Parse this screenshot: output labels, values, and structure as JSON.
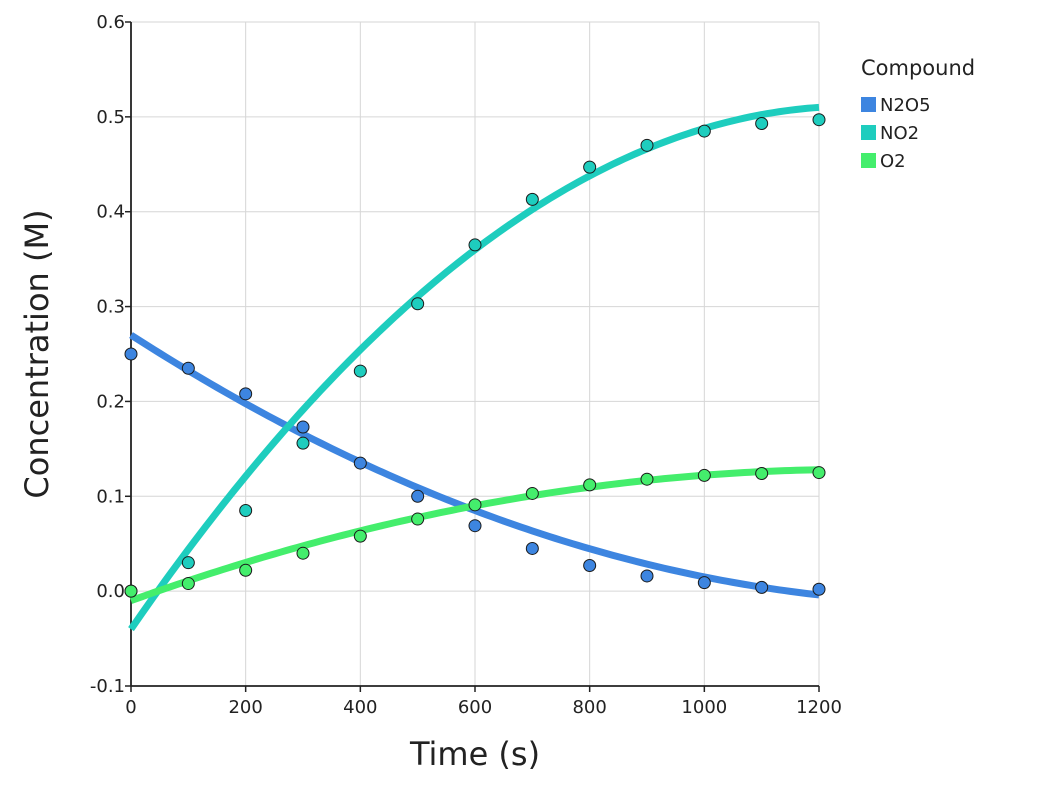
{
  "chart_data": {
    "type": "scatter",
    "xlabel": "Time (s)",
    "ylabel": "Concentration (M)",
    "xlim": [
      0,
      1200
    ],
    "ylim": [
      -0.1,
      0.6
    ],
    "x_ticks": [
      0,
      200,
      400,
      600,
      800,
      1000,
      1200
    ],
    "y_ticks": [
      -0.1,
      0.0,
      0.1,
      0.2,
      0.3,
      0.4,
      0.5,
      0.6
    ],
    "grid": true,
    "legend": {
      "title": "Compound",
      "position": "right"
    },
    "x": [
      0,
      100,
      200,
      300,
      400,
      500,
      600,
      700,
      800,
      900,
      1000,
      1100,
      1200
    ],
    "series": [
      {
        "name": "N2O5",
        "color": "#3d85e0",
        "values": [
          0.25,
          0.235,
          0.208,
          0.173,
          0.135,
          0.1,
          0.069,
          0.045,
          0.027,
          0.016,
          0.009,
          0.004,
          0.002
        ],
        "fit": {
          "type": "quadratic",
          "points": [
            [
              0,
              0.27
            ],
            [
              600,
              0.085
            ],
            [
              1200,
              -0.004
            ]
          ]
        }
      },
      {
        "name": "NO2",
        "color": "#1ecdbe",
        "values": [
          0.0,
          0.03,
          0.085,
          0.156,
          0.232,
          0.303,
          0.365,
          0.413,
          0.447,
          0.47,
          0.485,
          0.493,
          0.497
        ],
        "fit": {
          "type": "quadratic",
          "points": [
            [
              0,
              -0.04
            ],
            [
              600,
              0.36
            ],
            [
              1200,
              0.51
            ]
          ]
        }
      },
      {
        "name": "O2",
        "color": "#44ee6c",
        "values": [
          0.0,
          0.008,
          0.022,
          0.04,
          0.058,
          0.076,
          0.091,
          0.103,
          0.112,
          0.118,
          0.122,
          0.124,
          0.125
        ],
        "fit": {
          "type": "quadratic",
          "points": [
            [
              0,
              -0.01
            ],
            [
              600,
              0.09
            ],
            [
              1200,
              0.128
            ]
          ]
        }
      }
    ]
  }
}
